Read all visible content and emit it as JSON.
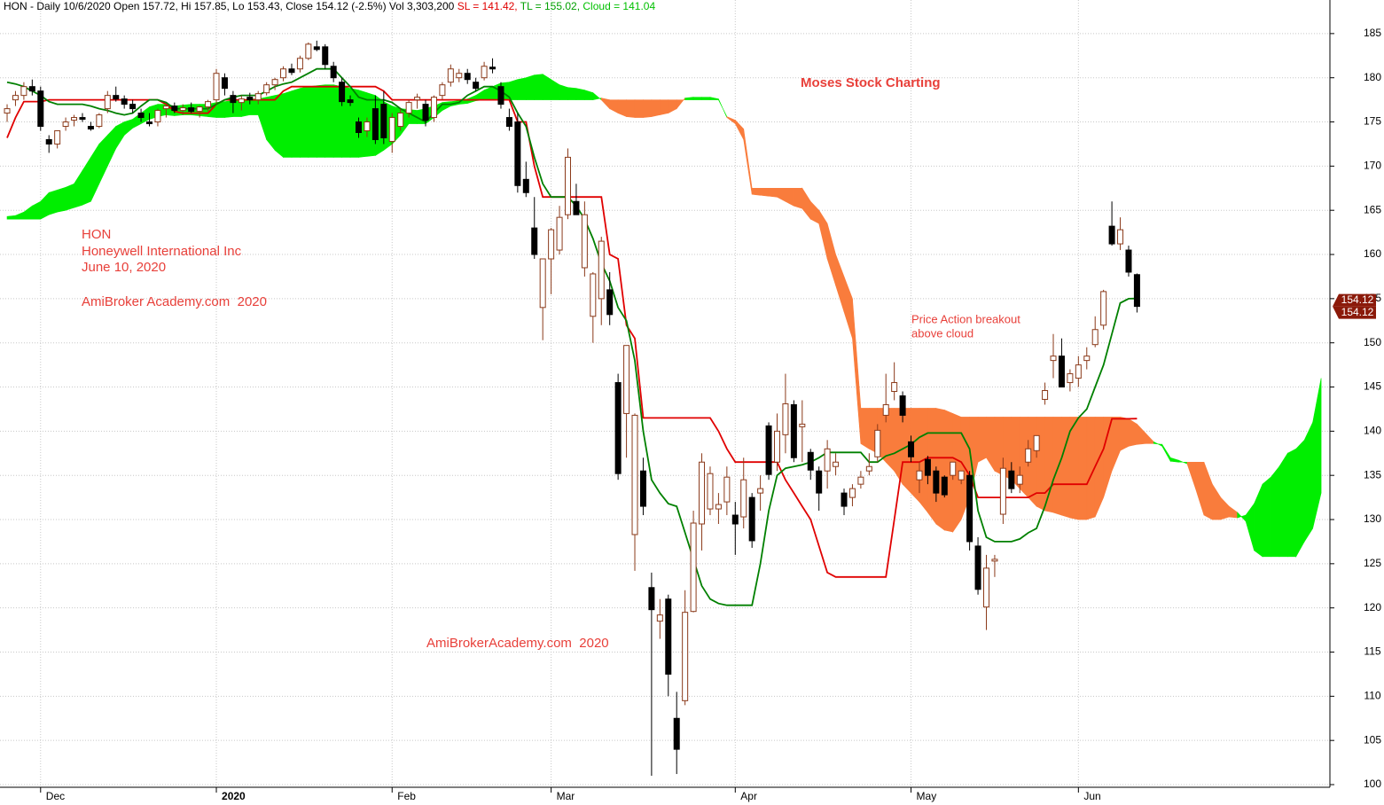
{
  "chart_data": {
    "type": "candlestick",
    "header": {
      "text": "HON - Daily 10/6/2020 Open 157.72, Hi 157.85, Lo 153.43, Close 154.12 (-2.5%) Vol 3,303,200",
      "sl": "SL = 141.42,",
      "tl": "TL = 155.02,",
      "cloud": "Cloud = 141.04"
    },
    "annotations": [
      "HON",
      "Honeywell International Inc",
      "June 10, 2020",
      "AmiBroker Academy.com  2020",
      "Moses Stock Charting",
      "Price Action breakout",
      "above cloud",
      "AmiBrokerAcademy.com  2020"
    ],
    "price_tags": [
      154.12,
      154.12
    ],
    "xlim": [
      -0.85,
      158.05
    ],
    "xticks": [
      {
        "value": 4,
        "label": "Dec"
      },
      {
        "value": 25,
        "label": "2020"
      },
      {
        "value": 46,
        "label": "Feb"
      },
      {
        "value": 65,
        "label": "Mar"
      },
      {
        "value": 87,
        "label": "Apr"
      },
      {
        "value": 108,
        "label": "May"
      },
      {
        "value": 128,
        "label": "Jun"
      }
    ],
    "ylim": [
      99.7,
      188.8
    ],
    "yticks": [
      100,
      105,
      110,
      115,
      120,
      125,
      130,
      135,
      140,
      145,
      150,
      155,
      160,
      165,
      170,
      175,
      180,
      185
    ],
    "grid": true,
    "up_color": "#ffffff",
    "down_color": "#000000",
    "outline_color": "#8b3a1a",
    "ohlc": {
      "open": [
        176,
        177.5,
        178,
        179,
        178.5,
        173,
        172.5,
        174.5,
        175.2,
        175.5,
        174.5,
        174.5,
        176.5,
        178,
        177.6,
        177,
        176,
        175,
        175,
        176.5,
        176.8,
        176.3,
        176.6,
        176.2,
        176.7,
        177.5,
        180,
        178,
        177.2,
        177.8,
        177.5,
        178.3,
        179.2,
        180,
        181,
        181,
        182.2,
        183.5,
        183.5,
        181.3,
        179.5,
        177.5,
        175,
        174,
        176.5,
        177,
        172.8,
        174.5,
        176,
        177.5,
        177,
        175.5,
        178,
        179.5,
        180,
        180.5,
        179.5,
        180,
        181.2,
        179,
        175.5,
        175,
        168.5,
        163,
        154,
        159.5,
        160.5,
        164.5,
        166,
        158.5,
        153,
        155,
        156,
        145.5,
        142,
        128.3,
        135.5,
        122.3,
        118.5,
        121,
        107.5,
        109.5,
        119.6,
        129.5,
        131.2,
        131.2,
        132,
        130.5,
        130.3,
        132.5,
        133,
        140.6,
        136.5,
        139.6,
        143,
        140.5,
        137.6,
        135.5,
        135.5,
        136,
        133,
        132.5,
        134,
        135.5,
        137.1,
        141.8,
        144.5,
        144,
        138.8,
        134.5,
        136.8,
        135.5,
        134.8,
        135,
        134.5,
        135,
        127,
        120.1,
        125.3,
        130.6,
        135.5,
        134,
        136.5,
        137.8,
        143.6,
        148,
        148.5,
        145.5,
        146,
        148,
        149.8,
        152,
        163.2,
        161.2,
        160.5,
        157.72
      ],
      "high": [
        177,
        178.5,
        179.5,
        179.8,
        179,
        173.5,
        174,
        175.5,
        175.8,
        176,
        175,
        176,
        178.5,
        179,
        178,
        177.5,
        176.5,
        176,
        176.5,
        177,
        177.2,
        177,
        177.2,
        176.8,
        177.5,
        181,
        180.5,
        178.5,
        178,
        178.3,
        178.5,
        179.5,
        180,
        181.3,
        181.6,
        182.5,
        184,
        184.2,
        183.8,
        181.8,
        180,
        178,
        175.5,
        175.5,
        178,
        178.5,
        176,
        176.5,
        177.5,
        178.2,
        177.5,
        178,
        179.5,
        181.5,
        181,
        181,
        180,
        181.8,
        182.2,
        179.5,
        176.5,
        176,
        170.5,
        166.5,
        159,
        163,
        165.5,
        172,
        168,
        166,
        158,
        162,
        158,
        146.5,
        149.5,
        142,
        137,
        124,
        121,
        121.5,
        110.5,
        122,
        131,
        137.5,
        136,
        133,
        136,
        132,
        137,
        133,
        135,
        141,
        142,
        146.5,
        143.5,
        143.5,
        138,
        136,
        139,
        137.5,
        133.5,
        134,
        135.5,
        137.5,
        140.8,
        146.5,
        147.8,
        144.5,
        139.5,
        136.5,
        137.2,
        136,
        135,
        136.5,
        135.5,
        135.5,
        128,
        126,
        126,
        137,
        136.5,
        136,
        139,
        139.5,
        145.5,
        151,
        150.5,
        147,
        148.5,
        149.5,
        153,
        156,
        166,
        164.2,
        161,
        157.85
      ],
      "low": [
        175,
        176.8,
        177.5,
        178,
        174,
        171.5,
        172,
        174,
        174.5,
        175,
        174,
        174.3,
        176,
        177.3,
        176.5,
        176,
        175,
        174.5,
        174.5,
        175.5,
        176,
        175.8,
        176,
        175.5,
        176.2,
        177,
        178,
        176,
        176.3,
        177,
        177,
        178,
        178.6,
        179.6,
        180.3,
        180.6,
        182,
        183,
        181,
        179.5,
        176.8,
        176.8,
        173.2,
        173.3,
        172.5,
        172.5,
        171.5,
        174,
        175.5,
        176.5,
        174.5,
        175,
        177.5,
        179,
        179.5,
        179.3,
        178.5,
        179.7,
        180.5,
        176.5,
        174,
        167,
        166.5,
        159.5,
        150.3,
        155.5,
        160,
        164,
        164.5,
        157.5,
        150,
        152,
        152,
        134.5,
        137,
        124.2,
        130.5,
        101,
        116.5,
        110,
        101.2,
        109,
        119.5,
        126.5,
        130.5,
        129.5,
        130.5,
        126,
        129,
        126.8,
        131,
        134.5,
        135.5,
        137.5,
        136.5,
        136.5,
        134.5,
        131,
        133.5,
        135,
        130.5,
        131.5,
        133.5,
        135,
        136.5,
        141,
        143.5,
        141,
        136.5,
        133,
        134,
        132,
        132.5,
        134.5,
        134,
        126.5,
        121.5,
        117.5,
        123.5,
        129.5,
        133,
        133,
        136,
        137,
        143,
        146,
        145,
        144.5,
        145,
        147,
        149.5,
        151.5,
        161,
        160.5,
        157.5,
        153.43
      ],
      "close": [
        176.5,
        178,
        179,
        178.5,
        174.5,
        172.5,
        174,
        175,
        175.5,
        175.3,
        174.2,
        175.8,
        178,
        177.6,
        177,
        176.5,
        175.5,
        174.8,
        176.3,
        176.8,
        176.3,
        176.6,
        176.2,
        176.7,
        177.3,
        180.5,
        178.8,
        177.2,
        177.6,
        177.5,
        178.2,
        179.2,
        179.8,
        181,
        180.6,
        182.2,
        183.8,
        183.2,
        181.5,
        180,
        177.3,
        177.2,
        173.8,
        175,
        173,
        173.2,
        175.5,
        176,
        177.2,
        177.8,
        175.2,
        177.8,
        179.2,
        181,
        180.5,
        179.8,
        178.8,
        181.3,
        181,
        177,
        174.5,
        167.8,
        167,
        160,
        159.5,
        162.8,
        164.2,
        171,
        164.5,
        164.5,
        157.8,
        161.5,
        153.2,
        135.2,
        149.7,
        141.8,
        131.5,
        119.8,
        119.2,
        112.5,
        104,
        119.5,
        129.6,
        136.5,
        135.2,
        131.7,
        134.8,
        129.5,
        134.5,
        127.6,
        133.5,
        135.1,
        140,
        143.1,
        137,
        140.8,
        135.6,
        133,
        138,
        136.5,
        131.5,
        133.5,
        134.8,
        136,
        140.1,
        143,
        145.5,
        141.8,
        137.1,
        135.5,
        135,
        133,
        132.8,
        136.5,
        135.5,
        127.5,
        122.1,
        124.5,
        125.5,
        135.8,
        133.5,
        135,
        138,
        139.5,
        144.6,
        148.5,
        145,
        146.5,
        147.5,
        148.5,
        151.5,
        155.8,
        161.2,
        162.8,
        158,
        154.12
      ]
    },
    "lines": [
      {
        "color": "#e00000",
        "values": [
          173.2,
          175.5,
          177.3,
          177.3,
          177.3,
          177.5,
          177.5,
          177.5,
          177.5,
          177.5,
          177.5,
          177.5,
          177.5,
          177.5,
          177.5,
          177.5,
          177.5,
          177.5,
          177.5,
          177,
          176.2,
          176,
          176,
          176,
          176,
          177,
          177.5,
          177.5,
          177.5,
          177.5,
          177.5,
          177.5,
          177.5,
          178.5,
          179,
          179,
          179,
          179,
          179,
          179,
          179,
          179,
          179,
          179,
          179,
          178.5,
          177.5,
          177.5,
          177.5,
          177.5,
          177.5,
          177.5,
          177.5,
          177.5,
          177.5,
          177.5,
          177.5,
          177.5,
          177.5,
          177.5,
          177.5,
          175,
          175,
          170,
          166.5,
          166.5,
          166.5,
          166.5,
          166.5,
          166.5,
          166.5,
          166.5,
          160,
          159.5,
          152,
          150.5,
          141.5,
          141.5,
          141.5,
          141.5,
          141.5,
          141.5,
          141.5,
          141.5,
          141.5,
          140,
          138,
          136.5,
          136.5,
          136.5,
          136.5,
          136.5,
          136.5,
          134.5,
          133,
          131.5,
          130,
          127,
          124,
          123.5,
          123.5,
          123.5,
          123.5,
          123.5,
          123.5,
          123.5,
          130,
          136.5,
          136.5,
          136.5,
          137,
          137,
          137,
          137,
          136.5,
          135,
          132.5,
          132.5,
          132.5,
          132.5,
          132.5,
          132.5,
          132.5,
          133,
          133,
          134,
          134,
          134,
          134,
          134,
          136,
          138,
          141.4,
          141.4,
          141.4,
          141.42
        ]
      },
      {
        "color": "#008000",
        "values": [
          179.5,
          179.3,
          179,
          178.5,
          178,
          177.3,
          177,
          177,
          177,
          177,
          176.8,
          176.5,
          176.3,
          176,
          175.8,
          176,
          176.8,
          177.5,
          177.5,
          177.2,
          176.5,
          176.5,
          176.5,
          176.5,
          176.5,
          177,
          177.5,
          177.8,
          178,
          178,
          178,
          178.5,
          179,
          179.3,
          179.5,
          180,
          180.5,
          181,
          181,
          181,
          180,
          179,
          177.8,
          177.5,
          177.5,
          177.5,
          177.2,
          176.5,
          176,
          175.5,
          175,
          176,
          177,
          177,
          177.2,
          178,
          178.5,
          179,
          179,
          178.5,
          177.8,
          176,
          174.5,
          171,
          168,
          166.5,
          166.5,
          166.5,
          165.5,
          164,
          161.8,
          159,
          157,
          154,
          152.5,
          148,
          140,
          134.5,
          133,
          131.8,
          131.5,
          128.5,
          125.5,
          122.5,
          121,
          120.5,
          120.3,
          120.3,
          120.3,
          120.3,
          125,
          131,
          135,
          135.8,
          136,
          136.2,
          136.5,
          137,
          137.6,
          137.6,
          137.6,
          137.6,
          137.6,
          136.5,
          136.5,
          137.2,
          137.5,
          138,
          138.5,
          139.3,
          139.8,
          139.8,
          139.8,
          139.8,
          139.8,
          138,
          131,
          128,
          127.5,
          127.5,
          127.5,
          127.8,
          128.5,
          129,
          131.5,
          134.5,
          137,
          140,
          141.5,
          142.5,
          145,
          147.5,
          151,
          154.5,
          155,
          155.02
        ]
      }
    ],
    "cloud": {
      "up_color": "#00ee00",
      "down_color": "#f97c3c",
      "span_a": [
        164.3,
        164.4,
        164.8,
        165.5,
        166,
        167,
        167.3,
        167.6,
        168,
        169.5,
        171,
        172.5,
        173.5,
        174.5,
        175,
        175.3,
        176,
        176.7,
        177,
        177,
        176.8,
        176.9,
        177,
        177,
        177,
        177.2,
        177.3,
        177.4,
        177.5,
        177.6,
        177.6,
        177.8,
        178,
        178.2,
        178.5,
        178.8,
        179,
        179.1,
        179.2,
        179.2,
        179,
        178.8,
        178.6,
        178.3,
        178,
        177.3,
        176.8,
        176.5,
        176.4,
        176.3,
        176.5,
        176.8,
        177.2,
        177.3,
        177.4,
        177.6,
        178,
        178.6,
        179,
        179.4,
        179.5,
        179.8,
        180,
        180.3,
        180.4,
        179.8,
        179.2,
        178.9,
        178.8,
        178.6,
        178.3,
        177.5,
        176.5,
        176,
        175.6,
        175.5,
        175.5,
        175.6,
        175.8,
        176,
        176.5,
        177.7,
        177.8,
        177.8,
        177.8,
        177.6,
        175.5,
        174.8,
        173,
        166.8,
        166.7,
        166.6,
        166.5,
        166,
        165.5,
        165.2,
        164,
        163.5,
        159.5,
        156.5,
        153.5,
        150.5,
        138.6,
        138,
        137.5,
        136.5,
        135.5,
        134,
        133,
        132,
        130.8,
        129.5,
        128.8,
        128.6,
        130,
        132.5,
        136.5,
        137,
        135.5,
        135,
        134.5,
        133.5,
        132.5,
        131.5,
        131,
        130.8,
        130.5,
        130.2,
        130,
        130,
        130.3,
        132.5,
        135.5,
        137.8,
        138.3,
        138.5,
        138.6,
        138.6,
        138.5,
        137,
        136.7,
        136.3,
        133.5,
        130.5,
        130,
        130,
        130.3,
        130.2,
        130.5,
        131.8,
        134,
        134.8,
        136,
        137.5,
        138,
        139,
        141,
        146
      ],
      "span_b": [
        164,
        164,
        164,
        164,
        164,
        164.5,
        164.8,
        165,
        165.3,
        165.6,
        166,
        168,
        170,
        172,
        173.5,
        174.3,
        174.8,
        175.3,
        175.6,
        175.8,
        175.7,
        175.8,
        175.8,
        175.7,
        175.6,
        175.5,
        175.5,
        175.6,
        175.6,
        175.8,
        175.8,
        173,
        171.8,
        171,
        171,
        171,
        171,
        171,
        171,
        171,
        171,
        171,
        171,
        171.1,
        171.2,
        171.8,
        172.5,
        173.5,
        174.8,
        174.8,
        174.8,
        175.5,
        176.3,
        176.8,
        177,
        177.1,
        177.4,
        177.5,
        177.5,
        177.5,
        177.5,
        177.5,
        177.5,
        177.5,
        177.5,
        177.5,
        177.5,
        177.5,
        177.5,
        177.5,
        177.5,
        177.7,
        177.5,
        177.5,
        177.5,
        177.5,
        177.5,
        177.5,
        177.5,
        177.5,
        177.5,
        177.5,
        177.5,
        177.5,
        177.5,
        177.5,
        175.6,
        175.2,
        174.2,
        167.5,
        167.5,
        167.5,
        167.5,
        167.5,
        167.5,
        167.5,
        166,
        165,
        163.5,
        160,
        157.5,
        155,
        142.6,
        142.6,
        142.6,
        142.6,
        142.6,
        142.6,
        142.6,
        142.6,
        142.6,
        142.6,
        142.4,
        142,
        141.6,
        141.6,
        141.6,
        141.6,
        141.6,
        141.6,
        141.6,
        141.6,
        141.6,
        141.6,
        141.6,
        141.6,
        141.6,
        141.6,
        141.6,
        141.6,
        141.6,
        141.6,
        141.6,
        141.6,
        141.4,
        140.8,
        139.8,
        138.8,
        138.3,
        136.6,
        136.5,
        136.5,
        136.5,
        136.5,
        134,
        132.5,
        131.5,
        130.8,
        129.8,
        126.5,
        125.8,
        125.8,
        125.8,
        125.8,
        125.8,
        127.5,
        129,
        133
      ]
    }
  }
}
